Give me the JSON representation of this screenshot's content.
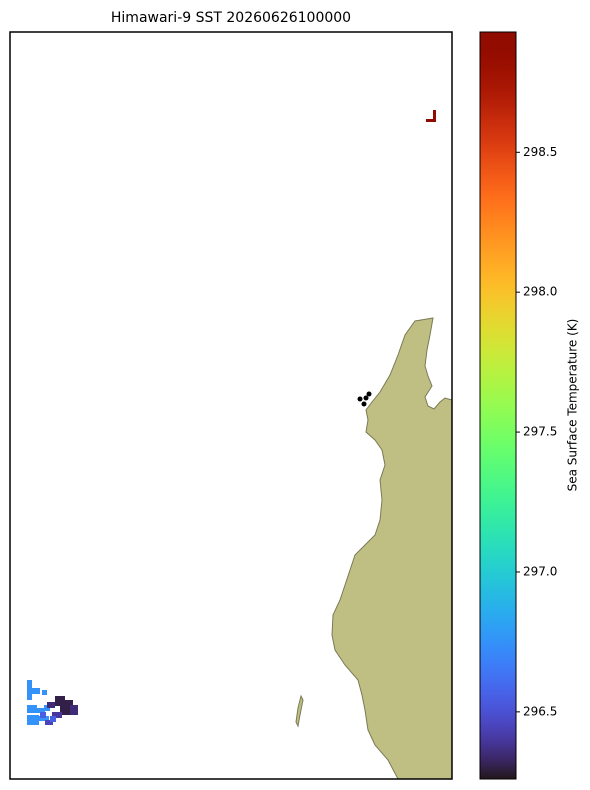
{
  "chart_data": {
    "type": "map",
    "title": "Himawari-9 SST 20260626100000",
    "land_color": "#bfbf84",
    "colorbar": {
      "label": "Sea Surface Temperature (K)",
      "cmap": "turbo",
      "lim": [
        296.26,
        298.93
      ],
      "ticks": [
        296.5,
        {
          "value": 297.0,
          "label": "297.0"
        },
        297.5,
        {
          "value": 298.0,
          "label": "298.0"
        },
        298.5
      ]
    },
    "cells": [
      296.75,
      296.75,
      296.75,
      296.75,
      296.75,
      296.75,
      296.75,
      296.75,
      296.35,
      296.3,
      296.3,
      296.3,
      296.35,
      296.4,
      296.45,
      296.55,
      296.55,
      298.9,
      298.9
    ]
  }
}
